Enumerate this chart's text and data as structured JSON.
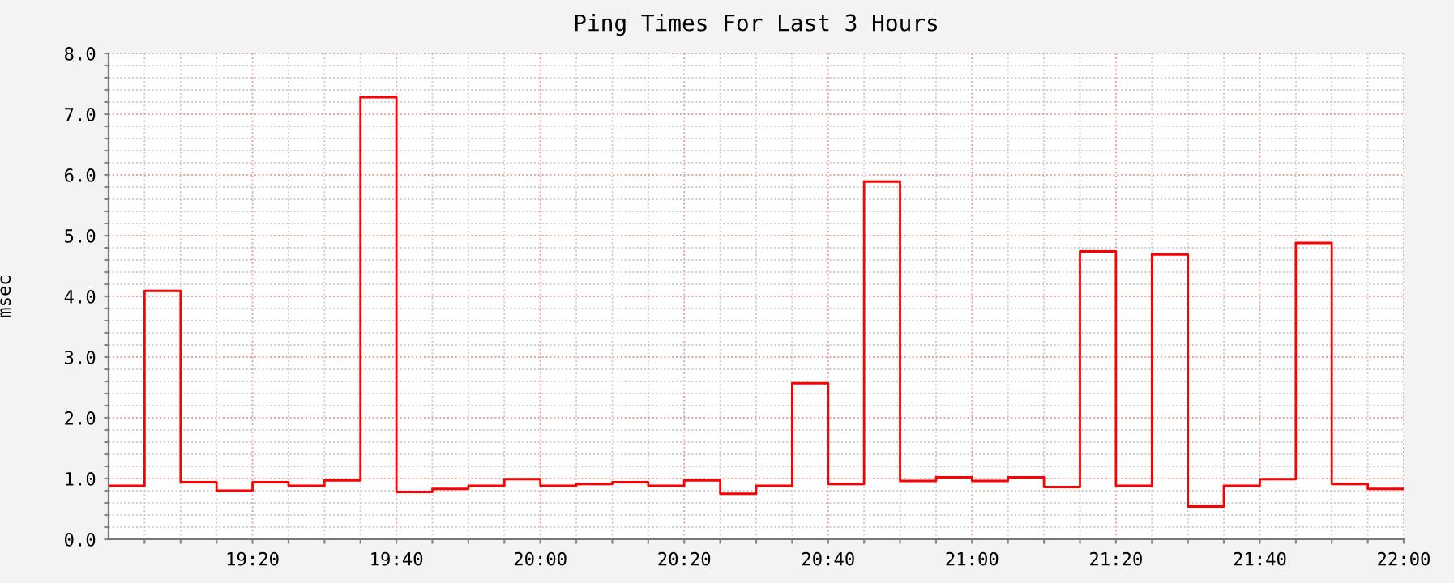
{
  "chart_data": {
    "type": "step",
    "title": "Ping Times For Last 3 Hours",
    "ylabel": "msec",
    "x": [
      19,
      19.0833,
      19.1667,
      19.25,
      19.3333,
      19.4167,
      19.5,
      19.5833,
      19.6667,
      19.75,
      19.8333,
      19.9167,
      20,
      20.0833,
      20.1667,
      20.25,
      20.3333,
      20.4167,
      20.5,
      20.5833,
      20.6667,
      20.75,
      20.8333,
      20.9167,
      21,
      21.0833,
      21.1667,
      21.25,
      21.3333,
      21.4167,
      21.5,
      21.5833,
      21.6667,
      21.75,
      21.8333,
      21.9167,
      22
    ],
    "series": [
      {
        "color": "#ff0000",
        "values": [
          0.88,
          4.09,
          0.94,
          0.8,
          0.94,
          0.88,
          0.97,
          7.28,
          0.78,
          0.83,
          0.88,
          0.99,
          0.88,
          0.91,
          0.94,
          0.88,
          0.97,
          0.75,
          0.88,
          2.57,
          0.91,
          5.89,
          0.96,
          1.02,
          0.96,
          1.02,
          0.86,
          4.74,
          0.88,
          4.69,
          0.54,
          0.88,
          0.99,
          4.88,
          0.91,
          0.83,
          0.83
        ]
      }
    ],
    "xlim": [
      19,
      22
    ],
    "xticks": [
      {
        "value": 19.0833,
        "label": null
      },
      {
        "value": 19.1667,
        "label": null
      },
      {
        "value": 19.25,
        "label": null
      },
      {
        "value": 19.3333,
        "label": "19:20"
      },
      {
        "value": 19.4167,
        "label": null
      },
      {
        "value": 19.5,
        "label": null
      },
      {
        "value": 19.5833,
        "label": null
      },
      {
        "value": 19.6667,
        "label": "19:40"
      },
      {
        "value": 19.75,
        "label": null
      },
      {
        "value": 19.8333,
        "label": null
      },
      {
        "value": 19.9167,
        "label": null
      },
      {
        "value": 20,
        "label": "20:00"
      },
      {
        "value": 20.0833,
        "label": null
      },
      {
        "value": 20.1667,
        "label": null
      },
      {
        "value": 20.25,
        "label": null
      },
      {
        "value": 20.3333,
        "label": "20:20"
      },
      {
        "value": 20.4167,
        "label": null
      },
      {
        "value": 20.5,
        "label": null
      },
      {
        "value": 20.5833,
        "label": null
      },
      {
        "value": 20.6667,
        "label": "20:40"
      },
      {
        "value": 20.75,
        "label": null
      },
      {
        "value": 20.8333,
        "label": null
      },
      {
        "value": 20.9167,
        "label": null
      },
      {
        "value": 21,
        "label": "21:00"
      },
      {
        "value": 21.0833,
        "label": null
      },
      {
        "value": 21.1667,
        "label": null
      },
      {
        "value": 21.25,
        "label": null
      },
      {
        "value": 21.3333,
        "label": "21:20"
      },
      {
        "value": 21.4167,
        "label": null
      },
      {
        "value": 21.5,
        "label": null
      },
      {
        "value": 21.5833,
        "label": null
      },
      {
        "value": 21.6667,
        "label": "21:40"
      },
      {
        "value": 21.75,
        "label": null
      },
      {
        "value": 21.8333,
        "label": null
      },
      {
        "value": 21.9167,
        "label": null
      },
      {
        "value": 22,
        "label": "22:00"
      }
    ],
    "ylim": [
      0,
      8
    ],
    "yticks": [
      {
        "value": 0,
        "label": "0.0"
      },
      {
        "value": 0.2,
        "label": null
      },
      {
        "value": 0.4,
        "label": null
      },
      {
        "value": 0.6,
        "label": null
      },
      {
        "value": 0.8,
        "label": null
      },
      {
        "value": 1,
        "label": "1.0"
      },
      {
        "value": 1.2,
        "label": null
      },
      {
        "value": 1.4,
        "label": null
      },
      {
        "value": 1.6,
        "label": null
      },
      {
        "value": 1.8,
        "label": null
      },
      {
        "value": 2,
        "label": "2.0"
      },
      {
        "value": 2.2,
        "label": null
      },
      {
        "value": 2.4,
        "label": null
      },
      {
        "value": 2.6,
        "label": null
      },
      {
        "value": 2.8,
        "label": null
      },
      {
        "value": 3,
        "label": "3.0"
      },
      {
        "value": 3.2,
        "label": null
      },
      {
        "value": 3.4,
        "label": null
      },
      {
        "value": 3.6,
        "label": null
      },
      {
        "value": 3.8,
        "label": null
      },
      {
        "value": 4,
        "label": "4.0"
      },
      {
        "value": 4.2,
        "label": null
      },
      {
        "value": 4.4,
        "label": null
      },
      {
        "value": 4.6,
        "label": null
      },
      {
        "value": 4.8,
        "label": null
      },
      {
        "value": 5,
        "label": "5.0"
      },
      {
        "value": 5.2,
        "label": null
      },
      {
        "value": 5.4,
        "label": null
      },
      {
        "value": 5.6,
        "label": null
      },
      {
        "value": 5.8,
        "label": null
      },
      {
        "value": 6,
        "label": "6.0"
      },
      {
        "value": 6.2,
        "label": null
      },
      {
        "value": 6.4,
        "label": null
      },
      {
        "value": 6.6,
        "label": null
      },
      {
        "value": 6.8,
        "label": null
      },
      {
        "value": 7,
        "label": "7.0"
      },
      {
        "value": 7.2,
        "label": null
      },
      {
        "value": 7.4,
        "label": null
      },
      {
        "value": 7.6,
        "label": null
      },
      {
        "value": 7.8,
        "label": null
      },
      {
        "value": 8,
        "label": "8.0"
      }
    ],
    "grid": true,
    "legend": false
  }
}
